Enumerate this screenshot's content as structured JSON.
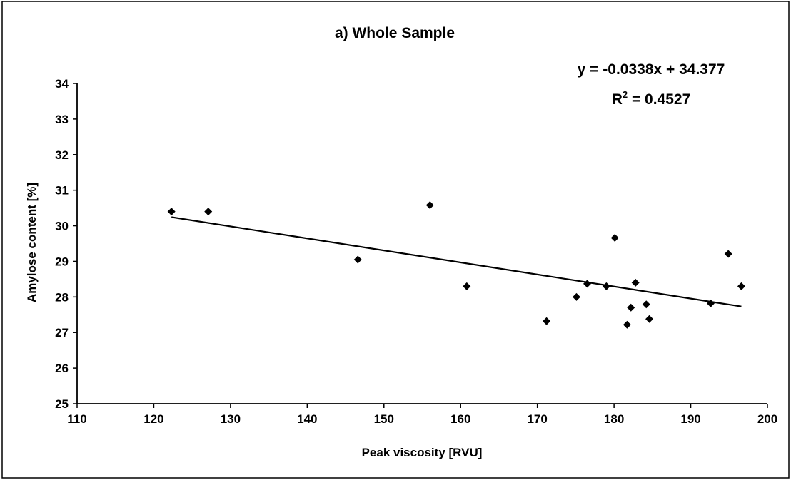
{
  "chart_data": {
    "type": "scatter",
    "title": "a) Whole Sample",
    "xlabel": "Peak viscosity [RVU]",
    "ylabel": "Amylose content [%]",
    "xlim": [
      110,
      200
    ],
    "ylim": [
      25,
      34
    ],
    "x_ticks": [
      110,
      120,
      130,
      140,
      150,
      160,
      170,
      180,
      190,
      200
    ],
    "y_ticks": [
      25,
      26,
      27,
      28,
      29,
      30,
      31,
      32,
      33,
      34
    ],
    "grid": false,
    "legend": "none",
    "points": [
      {
        "x": 122.3,
        "y": 30.4
      },
      {
        "x": 127.1,
        "y": 30.4
      },
      {
        "x": 146.6,
        "y": 29.05
      },
      {
        "x": 156.0,
        "y": 30.58
      },
      {
        "x": 160.8,
        "y": 28.3
      },
      {
        "x": 171.2,
        "y": 27.32
      },
      {
        "x": 175.1,
        "y": 28.0
      },
      {
        "x": 176.5,
        "y": 28.37
      },
      {
        "x": 179.0,
        "y": 28.3
      },
      {
        "x": 180.1,
        "y": 29.66
      },
      {
        "x": 181.7,
        "y": 27.22
      },
      {
        "x": 182.2,
        "y": 27.7
      },
      {
        "x": 182.8,
        "y": 28.4
      },
      {
        "x": 184.2,
        "y": 27.79
      },
      {
        "x": 184.6,
        "y": 27.38
      },
      {
        "x": 192.6,
        "y": 27.82
      },
      {
        "x": 194.9,
        "y": 29.21
      },
      {
        "x": 196.6,
        "y": 28.3
      }
    ],
    "trendline": {
      "slope": -0.0338,
      "intercept": 34.377,
      "x_range": [
        122.3,
        196.6
      ],
      "equation_label": "y = -0.0338x + 34.377",
      "r2_label": "R",
      "r2_sup": "2",
      "r2_value": " = 0.4527"
    },
    "marker_color": "#000000",
    "line_color": "#000000"
  }
}
